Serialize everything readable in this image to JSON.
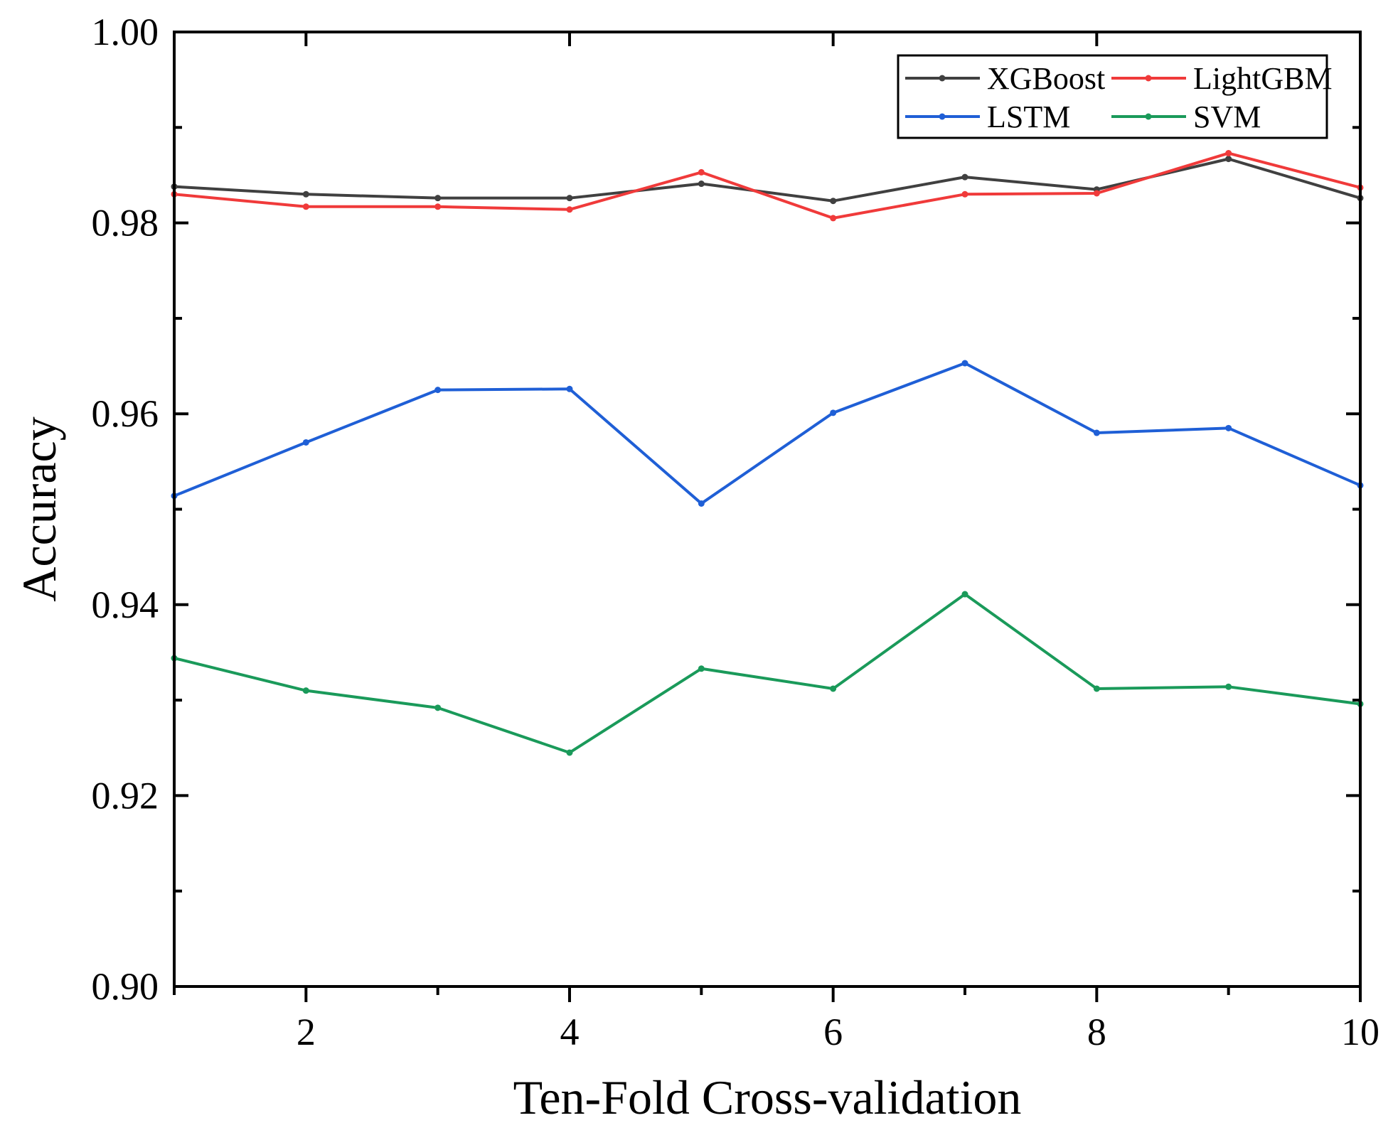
{
  "chart_data": {
    "type": "line",
    "title": "",
    "xlabel": "Ten-Fold Cross-validation",
    "ylabel": "Accuracy",
    "xlim": [
      1,
      10
    ],
    "ylim": [
      0.9,
      1.0
    ],
    "x_ticks": [
      2,
      4,
      6,
      8,
      10
    ],
    "x_tick_labels": [
      "2",
      "4",
      "6",
      "8",
      "10"
    ],
    "y_ticks": [
      0.9,
      0.92,
      0.94,
      0.96,
      0.98,
      1.0
    ],
    "y_tick_labels": [
      "0.90",
      "0.92",
      "0.94",
      "0.96",
      "0.98",
      "1.00"
    ],
    "y_minor_ticks": [
      0.91,
      0.93,
      0.95,
      0.97,
      0.99
    ],
    "x_minor_ticks": [
      1,
      3,
      5,
      7,
      9
    ],
    "grid": false,
    "legend_position": "top-right",
    "x": [
      1,
      2,
      3,
      4,
      5,
      6,
      7,
      8,
      9,
      10
    ],
    "series": [
      {
        "name": "XGBoost",
        "color": "#404040",
        "values": [
          0.9838,
          0.983,
          0.9826,
          0.9826,
          0.9841,
          0.9823,
          0.9848,
          0.9835,
          0.9867,
          0.9826
        ]
      },
      {
        "name": "LightGBM",
        "color": "#f03a3a",
        "values": [
          0.983,
          0.9817,
          0.9817,
          0.9814,
          0.9853,
          0.9805,
          0.983,
          0.9831,
          0.9873,
          0.9837
        ]
      },
      {
        "name": "LSTM",
        "color": "#1f5fd6",
        "values": [
          0.9514,
          0.957,
          0.9625,
          0.9626,
          0.9506,
          0.9601,
          0.9653,
          0.958,
          0.9585,
          0.9525
        ]
      },
      {
        "name": "SVM",
        "color": "#1a9a5a",
        "values": [
          0.9344,
          0.931,
          0.9292,
          0.9245,
          0.9333,
          0.9312,
          0.9411,
          0.9312,
          0.9314,
          0.9296
        ]
      }
    ]
  }
}
